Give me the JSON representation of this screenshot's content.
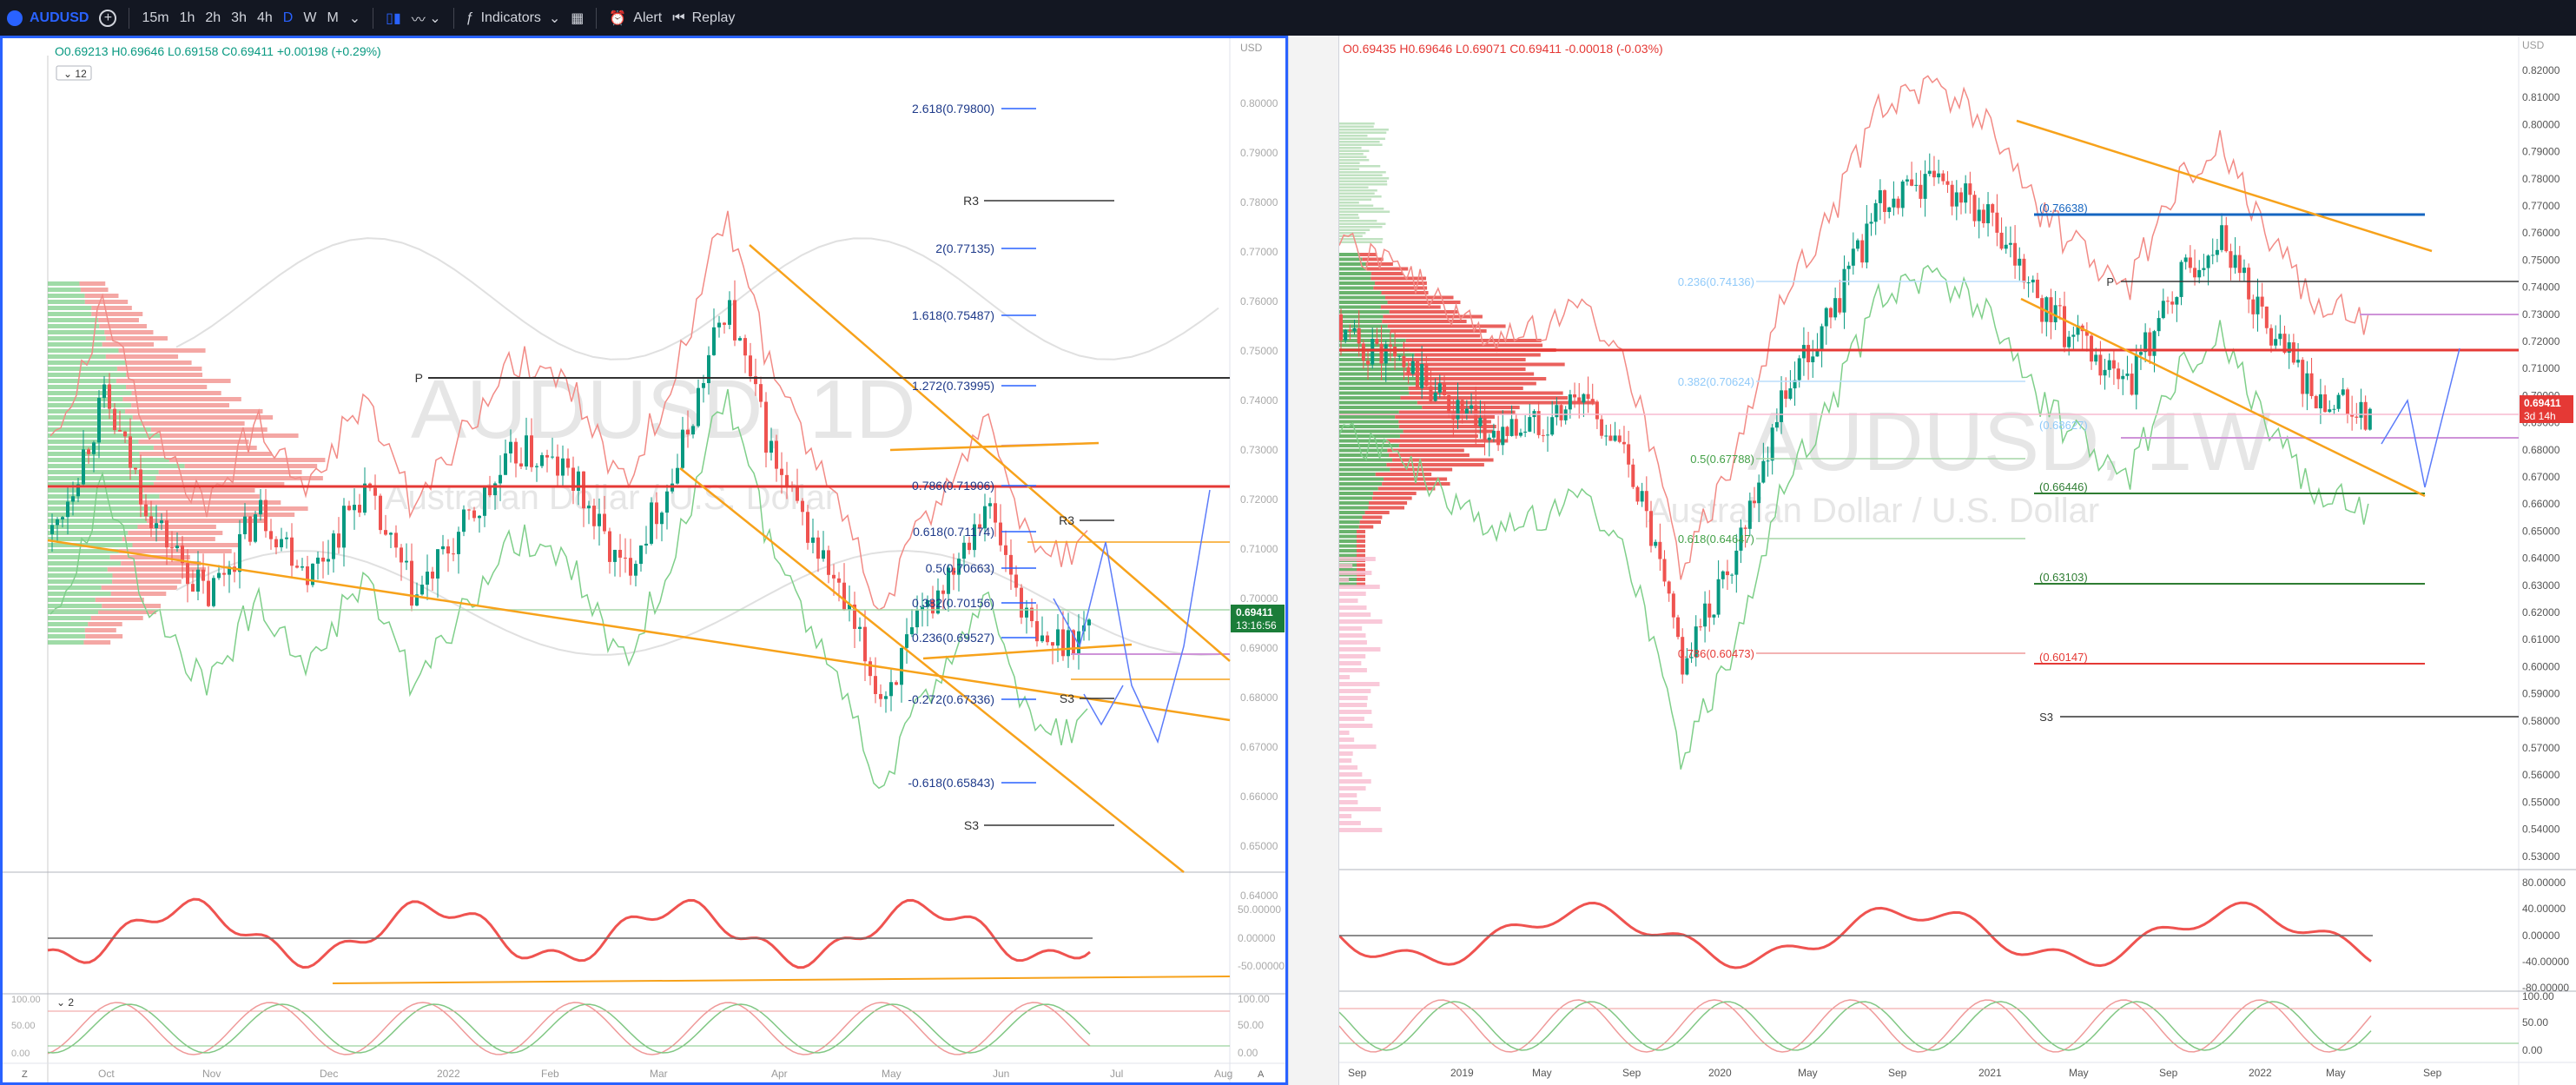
{
  "toolbar": {
    "symbol": "AUDUSD",
    "intervals": [
      "15m",
      "1h",
      "2h",
      "3h",
      "4h",
      "D",
      "W",
      "M"
    ],
    "active_interval": "D",
    "indicators_label": "Indicators",
    "alert_label": "Alert",
    "replay_label": "Replay"
  },
  "left_chart": {
    "watermark_symbol": "AUDUSD, 1D",
    "watermark_name": "Australian Dollar / U.S. Dollar",
    "ohlc": {
      "o": "0.69213",
      "h": "0.69646",
      "l": "0.69158",
      "c": "0.69411",
      "chg": "+0.00198 (+0.29%)"
    },
    "study_tag": "12",
    "price_axis_top": "USD",
    "price_ticks": [
      "0.80000",
      "0.79000",
      "0.78000",
      "0.77000",
      "0.76000",
      "0.75000",
      "0.74000",
      "0.73000",
      "0.72000",
      "0.71000",
      "0.70000",
      "0.69000",
      "0.68000",
      "0.67000",
      "0.66000",
      "0.65000",
      "0.64000"
    ],
    "last_price": "0.69411",
    "countdown": "13:16:56",
    "time_labels": [
      "Oct",
      "Nov",
      "Dec",
      "2022",
      "Feb",
      "Mar",
      "Apr",
      "May",
      "Jun",
      "Jul",
      "Aug"
    ],
    "fib_labels": [
      "2.618(0.79800)",
      "2(0.77135)",
      "1.618(0.75487)",
      "1.272(0.73995)",
      "0.786(0.71906)",
      "0.618(0.71174)",
      "0.5(0.70663)",
      "0.382(0.70156)",
      "0.236(0.69527)",
      "-0.272(0.67336)",
      "-0.618(0.65843)"
    ],
    "pivot_labels": [
      "R3",
      "P",
      "R3",
      "S3",
      "S3"
    ],
    "rsi_ticks": [
      "50.00000",
      "0.00000",
      "-50.00000"
    ],
    "stoch_ticks": [
      "100.00",
      "50.00",
      "0.00"
    ],
    "stoch_tag": "2",
    "bottom_left_tag": "Z",
    "bottom_right_tag": "A"
  },
  "right_chart": {
    "watermark_symbol": "AUDUSD, 1W",
    "watermark_name": "Australian Dollar / U.S. Dollar",
    "ohlc": {
      "o": "0.69435",
      "h": "0.69646",
      "l": "0.69071",
      "c": "0.69411",
      "chg": "-0.00018 (-0.03%)"
    },
    "price_axis_top": "USD",
    "price_ticks": [
      "0.82000",
      "0.81000",
      "0.80000",
      "0.79000",
      "0.78000",
      "0.77000",
      "0.76000",
      "0.75000",
      "0.74000",
      "0.73000",
      "0.72000",
      "0.71000",
      "0.70000",
      "0.69000",
      "0.68000",
      "0.67000",
      "0.66000",
      "0.65000",
      "0.64000",
      "0.63000",
      "0.62000",
      "0.61000",
      "0.60000",
      "0.59000",
      "0.58000",
      "0.57000",
      "0.56000",
      "0.55000",
      "0.54000",
      "0.53000"
    ],
    "last_price": "0.69411",
    "countdown": "3d 14h",
    "time_labels": [
      "Sep",
      "2019",
      "May",
      "Sep",
      "2020",
      "May",
      "Sep",
      "2021",
      "May",
      "Sep",
      "2022",
      "May",
      "Sep"
    ],
    "fib_labels": [
      "0.236(0.74136)",
      "0.382(0.70624)",
      "0.5(0.67788)",
      "0.618(0.64647)",
      "0.786(0.60473)"
    ],
    "level_labels": [
      "(0.76638)",
      "(0.68627)",
      "(0.66446)",
      "(0.63103)",
      "(0.60147)"
    ],
    "pivot_labels": [
      "P",
      "S3"
    ],
    "rsi_ticks": [
      "80.00000",
      "40.00000",
      "0.00000",
      "-40.00000",
      "-80.00000"
    ],
    "stoch_ticks": [
      "100.00",
      "50.00",
      "0.00"
    ]
  },
  "colors": {
    "accent": "#2962ff",
    "up": "#26a69a",
    "up_candle": "#089981",
    "down": "#ef5350",
    "orange": "#f7a21b",
    "toolbar_bg": "#131722"
  }
}
